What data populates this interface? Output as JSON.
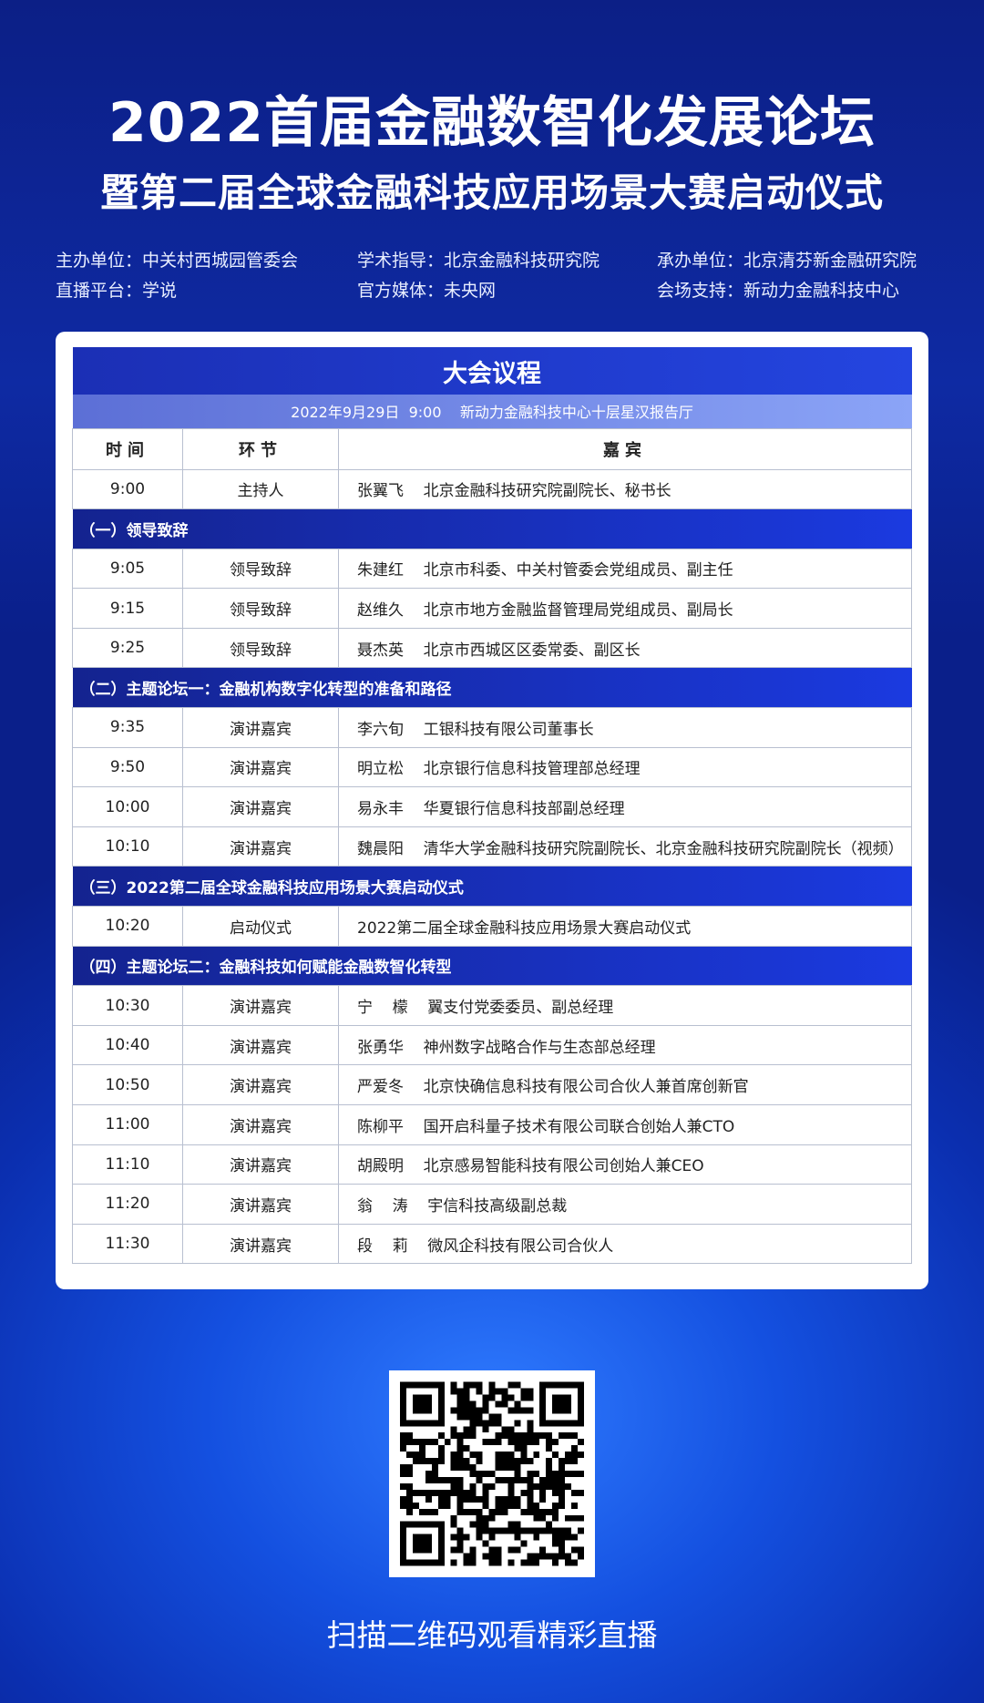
{
  "header": {
    "title1": "2022首届金融数智化发展论坛",
    "title2": "暨第二届全球金融科技应用场景大赛启动仪式"
  },
  "info": [
    {
      "label": "主办单位：",
      "value": "中关村西城园管委会"
    },
    {
      "label": "学术指导：",
      "value": "北京金融科技研究院"
    },
    {
      "label": "承办单位：",
      "value": "北京清芬新金融研究院"
    },
    {
      "label": "直播平台：",
      "value": "学说"
    },
    {
      "label": "官方媒体：",
      "value": "未央网"
    },
    {
      "label": "会场支持：",
      "value": "新动力金融科技中心"
    }
  ],
  "agenda": {
    "title": "大会议程",
    "subtitle": "2022年9月29日  9:00    新动力金融科技中心十层星汉报告厅",
    "columns": [
      "时间",
      "环节",
      "嘉宾"
    ],
    "rows": [
      {
        "time": "9:00",
        "segment": "主持人",
        "guest": "张翼飞    北京金融科技研究院副院长、秘书长"
      },
      {
        "section": "（一）领导致辞"
      },
      {
        "time": "9:05",
        "segment": "领导致辞",
        "guest": "朱建红    北京市科委、中关村管委会党组成员、副主任"
      },
      {
        "time": "9:15",
        "segment": "领导致辞",
        "guest": "赵维久    北京市地方金融监督管理局党组成员、副局长"
      },
      {
        "time": "9:25",
        "segment": "领导致辞",
        "guest": "聂杰英    北京市西城区区委常委、副区长"
      },
      {
        "section": "（二）主题论坛一：金融机构数字化转型的准备和路径"
      },
      {
        "time": "9:35",
        "segment": "演讲嘉宾",
        "guest": "李六旬    工银科技有限公司董事长"
      },
      {
        "time": "9:50",
        "segment": "演讲嘉宾",
        "guest": "明立松    北京银行信息科技管理部总经理"
      },
      {
        "time": "10:00",
        "segment": "演讲嘉宾",
        "guest": "易永丰    华夏银行信息科技部副总经理"
      },
      {
        "time": "10:10",
        "segment": "演讲嘉宾",
        "guest": "魏晨阳    清华大学金融科技研究院副院长、北京金融科技研究院副院长（视频）"
      },
      {
        "section": "（三）2022第二届全球金融科技应用场景大赛启动仪式"
      },
      {
        "time": "10:20",
        "segment": "启动仪式",
        "guest": "2022第二届全球金融科技应用场景大赛启动仪式"
      },
      {
        "section": "（四）主题论坛二：金融科技如何赋能金融数智化转型"
      },
      {
        "time": "10:30",
        "segment": "演讲嘉宾",
        "guest": "宁    檬    翼支付党委委员、副总经理"
      },
      {
        "time": "10:40",
        "segment": "演讲嘉宾",
        "guest": "张勇华    神州数字战略合作与生态部总经理"
      },
      {
        "time": "10:50",
        "segment": "演讲嘉宾",
        "guest": "严爱冬    北京快确信息科技有限公司合伙人兼首席创新官"
      },
      {
        "time": "11:00",
        "segment": "演讲嘉宾",
        "guest": "陈柳平    国开启科量子技术有限公司联合创始人兼CTO"
      },
      {
        "time": "11:10",
        "segment": "演讲嘉宾",
        "guest": "胡殿明    北京感易智能科技有限公司创始人兼CEO"
      },
      {
        "time": "11:20",
        "segment": "演讲嘉宾",
        "guest": "翁    涛    宇信科技高级副总裁"
      },
      {
        "time": "11:30",
        "segment": "演讲嘉宾",
        "guest": "段    莉    微风企科技有限公司合伙人"
      }
    ]
  },
  "footer": {
    "text": "扫描二维码观看精彩直播"
  },
  "colors": {
    "background": "#0b2fb0",
    "section_bar": "#1b3ae0",
    "subtitle_bar": "#8ba4f7"
  }
}
